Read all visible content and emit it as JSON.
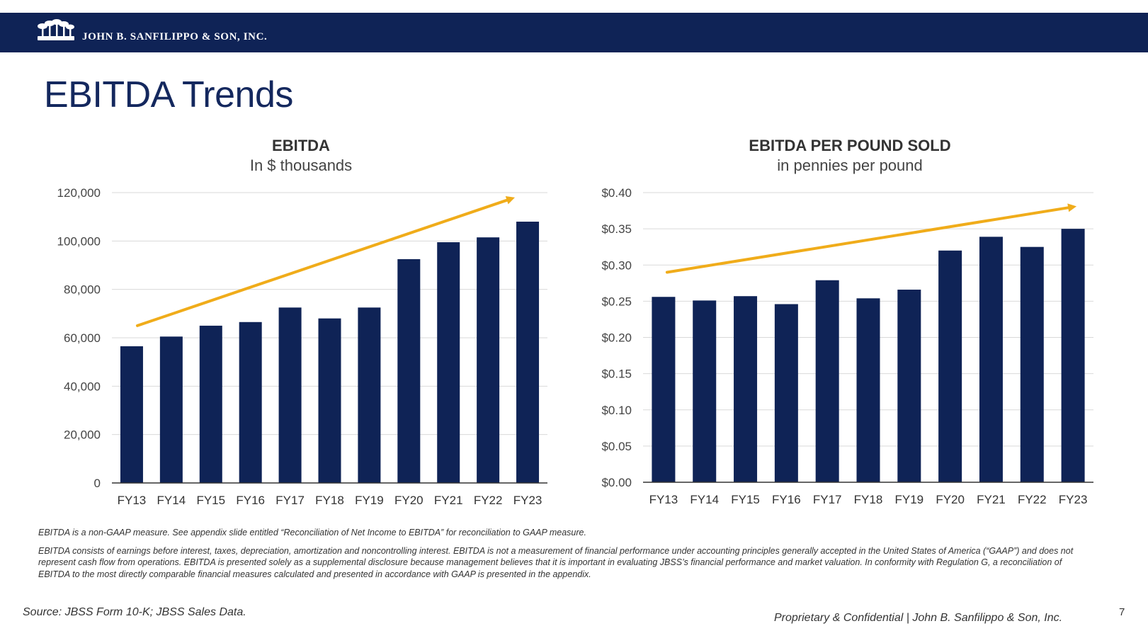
{
  "header": {
    "company": "JOHN B. SANFILIPPO & SON, INC."
  },
  "title": "EBITDA Trends",
  "colors": {
    "banner": "#0f2356",
    "bar": "#0f2356",
    "trend": "#f0ac1a",
    "grid": "#d9d9d9"
  },
  "chart_data": [
    {
      "type": "bar",
      "title": "EBITDA",
      "subtitle": "In $ thousands",
      "categories": [
        "FY13",
        "FY14",
        "FY15",
        "FY16",
        "FY17",
        "FY18",
        "FY19",
        "FY20",
        "FY21",
        "FY22",
        "FY23"
      ],
      "values": [
        56500,
        60500,
        65000,
        66500,
        72500,
        68000,
        72500,
        92500,
        99500,
        101500,
        108000
      ],
      "ylim": [
        0,
        120000
      ],
      "yticks": [
        0,
        20000,
        40000,
        60000,
        80000,
        100000,
        120000
      ],
      "ytick_labels": [
        "0",
        "20,000",
        "40,000",
        "60,000",
        "80,000",
        "100,000",
        "120,000"
      ],
      "grid": true,
      "trend": {
        "from": {
          "category": "FY13",
          "value": 65000
        },
        "to": {
          "category": "FY23",
          "value": 118000
        }
      }
    },
    {
      "type": "bar",
      "title": "EBITDA PER POUND SOLD",
      "subtitle": "in pennies per pound",
      "categories": [
        "FY13",
        "FY14",
        "FY15",
        "FY16",
        "FY17",
        "FY18",
        "FY19",
        "FY20",
        "FY21",
        "FY22",
        "FY23"
      ],
      "values": [
        0.256,
        0.251,
        0.257,
        0.246,
        0.279,
        0.254,
        0.266,
        0.32,
        0.339,
        0.325,
        0.35
      ],
      "ylim": [
        0,
        0.4
      ],
      "yticks": [
        0,
        0.05,
        0.1,
        0.15,
        0.2,
        0.25,
        0.3,
        0.35,
        0.4
      ],
      "ytick_labels": [
        "$0.00",
        "$0.05",
        "$0.10",
        "$0.15",
        "$0.20",
        "$0.25",
        "$0.30",
        "$0.35",
        "$0.40"
      ],
      "grid": true,
      "trend": {
        "from": {
          "category": "FY13",
          "value": 0.29
        },
        "to": {
          "category": "FY23",
          "value": 0.381
        }
      }
    }
  ],
  "notes": {
    "line1": "EBITDA is a non-GAAP measure.  See appendix slide entitled  “Reconciliation of Net Income to EBITDA”  for reconciliation to GAAP measure.",
    "line2": "EBITDA consists of earnings before interest, taxes, depreciation, amortization and noncontrolling interest. EBITDA is not a measurement of financial performance under accounting principles generally accepted in the United States of America (“GAAP”) and does not represent cash flow from operations. EBITDA is presented solely as a supplemental disclosure because management believes that it is important in evaluating JBSS’s financial performance and market valuation.  In conformity with Regulation G, a reconciliation of EBITDA to the most directly comparable financial measures calculated and presented in accordance with GAAP is presented in the appendix."
  },
  "footer": {
    "source": "Source: JBSS Form 10-K; JBSS Sales Data.",
    "confidential": "Proprietary & Confidential | John B. Sanfilippo & Son, Inc.",
    "page": "7"
  }
}
